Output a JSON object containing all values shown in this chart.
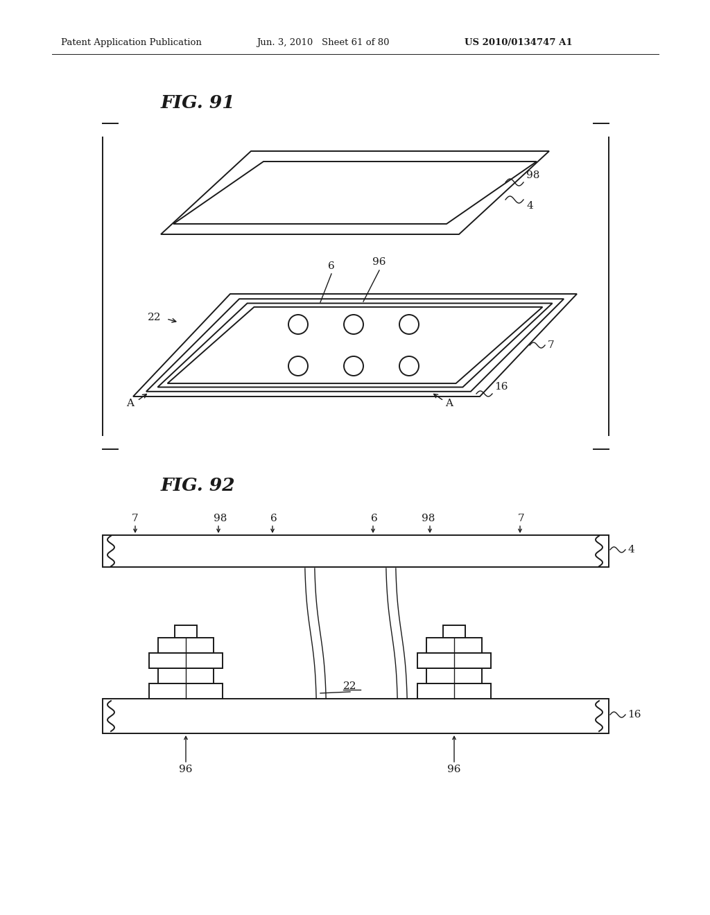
{
  "bg_color": "#ffffff",
  "header_left": "Patent Application Publication",
  "header_mid": "Jun. 3, 2010   Sheet 61 of 80",
  "header_right": "US 2010/0134747 A1",
  "fig91_label": "FIG. 91",
  "fig92_label": "FIG. 92",
  "color": "#1a1a1a"
}
